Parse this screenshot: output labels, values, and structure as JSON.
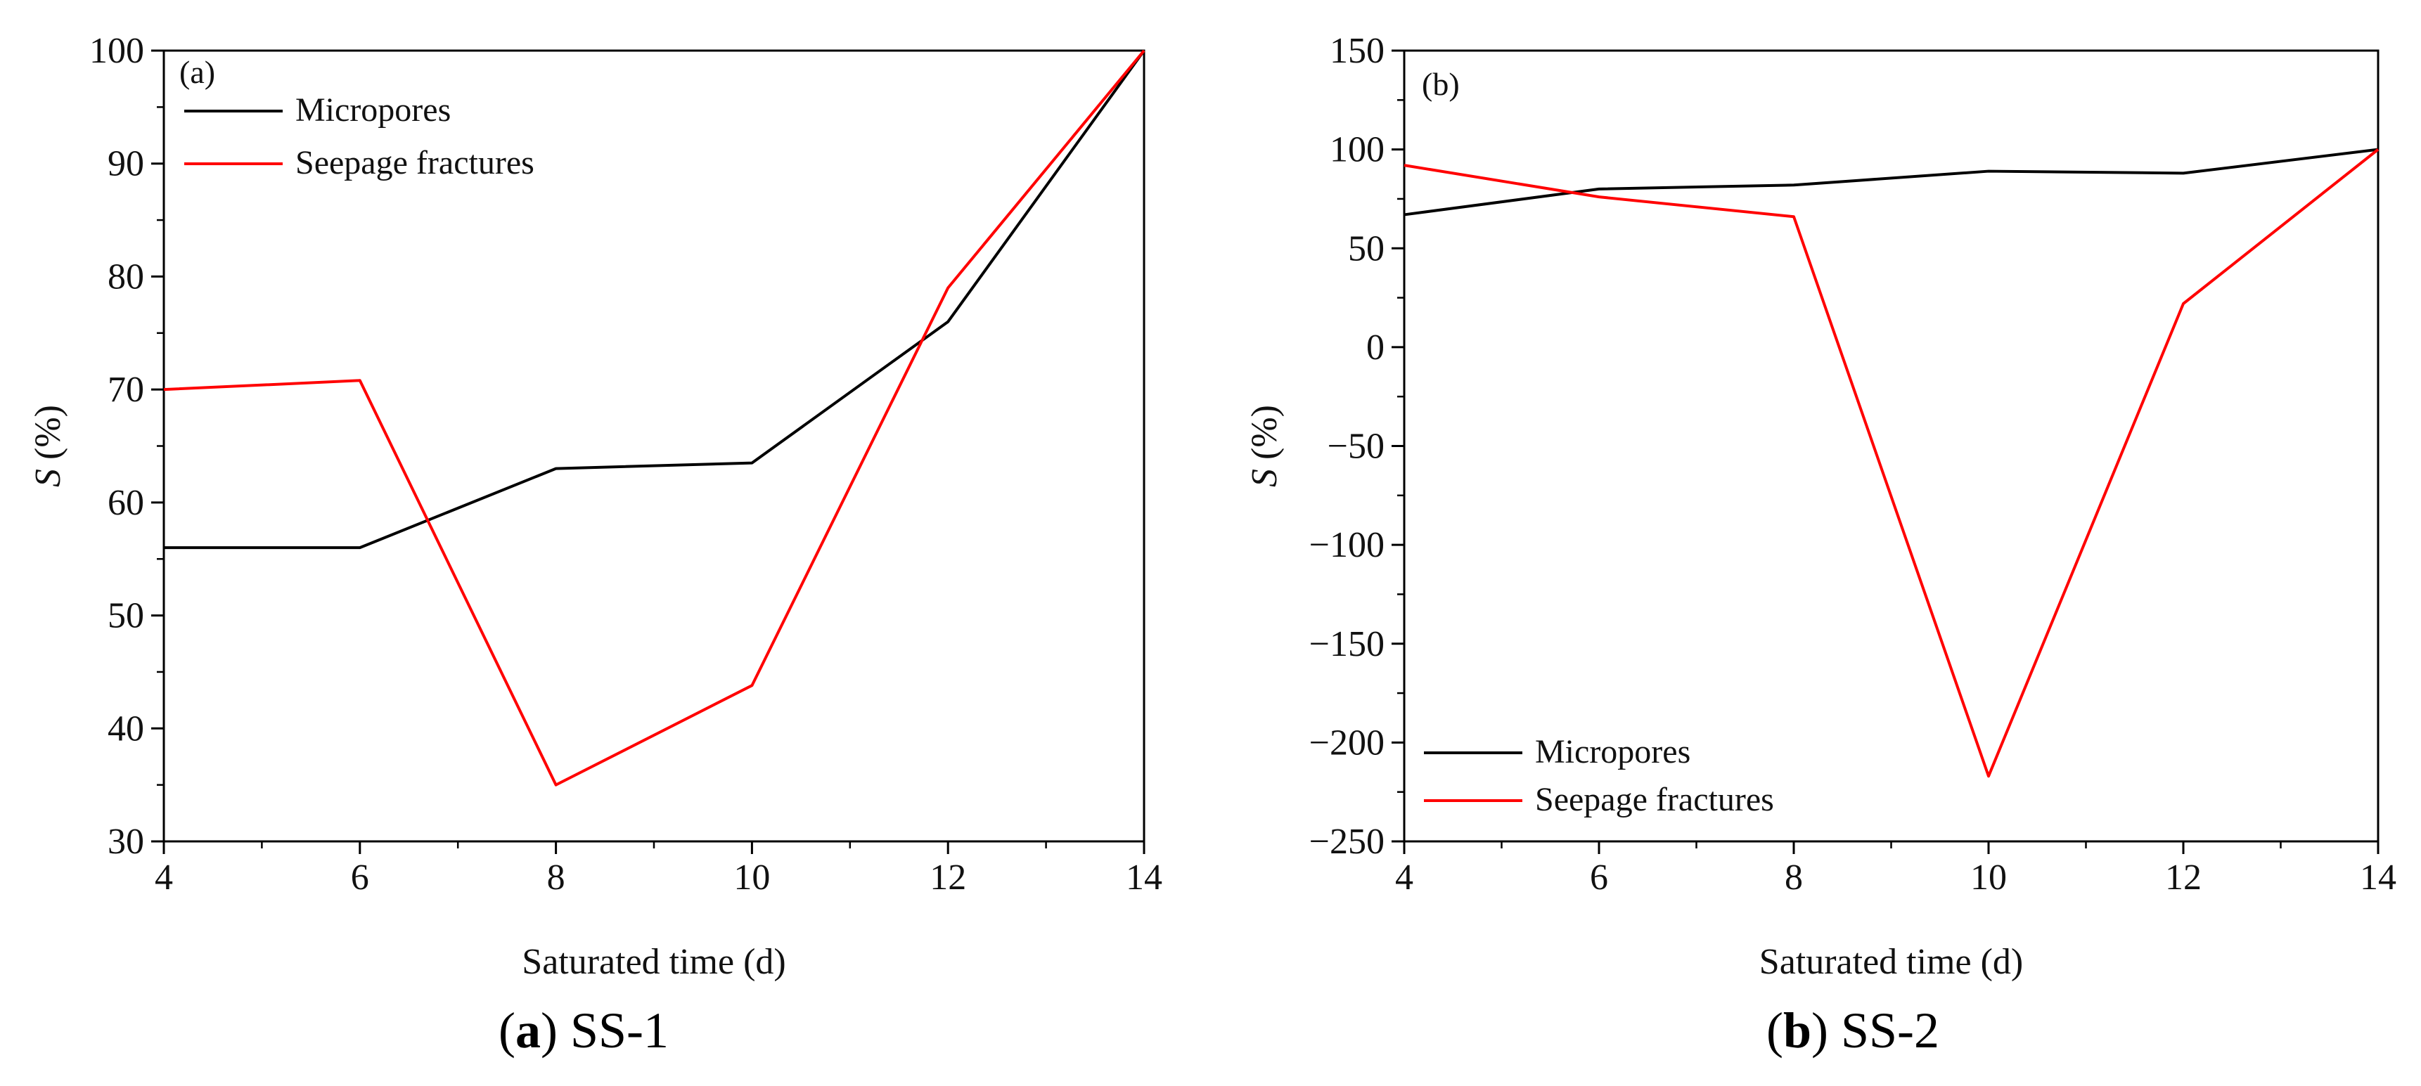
{
  "chart_data": [
    {
      "type": "line",
      "panel_label": "(a)",
      "caption_letter": "a",
      "caption_text": "SS-1",
      "xlabel": "Saturated time (d)",
      "ylabel_italic": "S",
      "ylabel_rest": "(%)",
      "xlim": [
        4,
        14
      ],
      "ylim": [
        30,
        100
      ],
      "xticks": [
        4,
        6,
        8,
        10,
        12,
        14
      ],
      "yticks": [
        30,
        40,
        50,
        60,
        70,
        80,
        90,
        100
      ],
      "legend_position": "top-left",
      "x": [
        4,
        6,
        8,
        10,
        12,
        14
      ],
      "series": [
        {
          "name": "Micropores",
          "color": "#000000",
          "values": [
            56,
            56,
            63,
            63.5,
            76,
            100
          ]
        },
        {
          "name": "Seepage fractures",
          "color": "#ff0000",
          "values": [
            70,
            70.8,
            35,
            43.8,
            79,
            100
          ]
        }
      ]
    },
    {
      "type": "line",
      "panel_label": "(b)",
      "caption_letter": "b",
      "caption_text": "SS-2",
      "xlabel": "Saturated time (d)",
      "ylabel_italic": "S",
      "ylabel_rest": "(%)",
      "xlim": [
        4,
        14
      ],
      "ylim": [
        -250,
        150
      ],
      "xticks": [
        4,
        6,
        8,
        10,
        12,
        14
      ],
      "yticks": [
        -250,
        -200,
        -150,
        -100,
        -50,
        0,
        50,
        100,
        150
      ],
      "ytick_labels": [
        "−250",
        "−200",
        "−150",
        "−100",
        "−50",
        "0",
        "50",
        "100",
        "150"
      ],
      "legend_position": "bottom-left",
      "x": [
        4,
        6,
        8,
        10,
        12,
        14
      ],
      "series": [
        {
          "name": "Micropores",
          "color": "#000000",
          "values": [
            67,
            80,
            82,
            89,
            88,
            100
          ]
        },
        {
          "name": "Seepage fractures",
          "color": "#ff0000",
          "values": [
            92,
            76,
            66,
            -217,
            22,
            100
          ]
        }
      ]
    }
  ]
}
